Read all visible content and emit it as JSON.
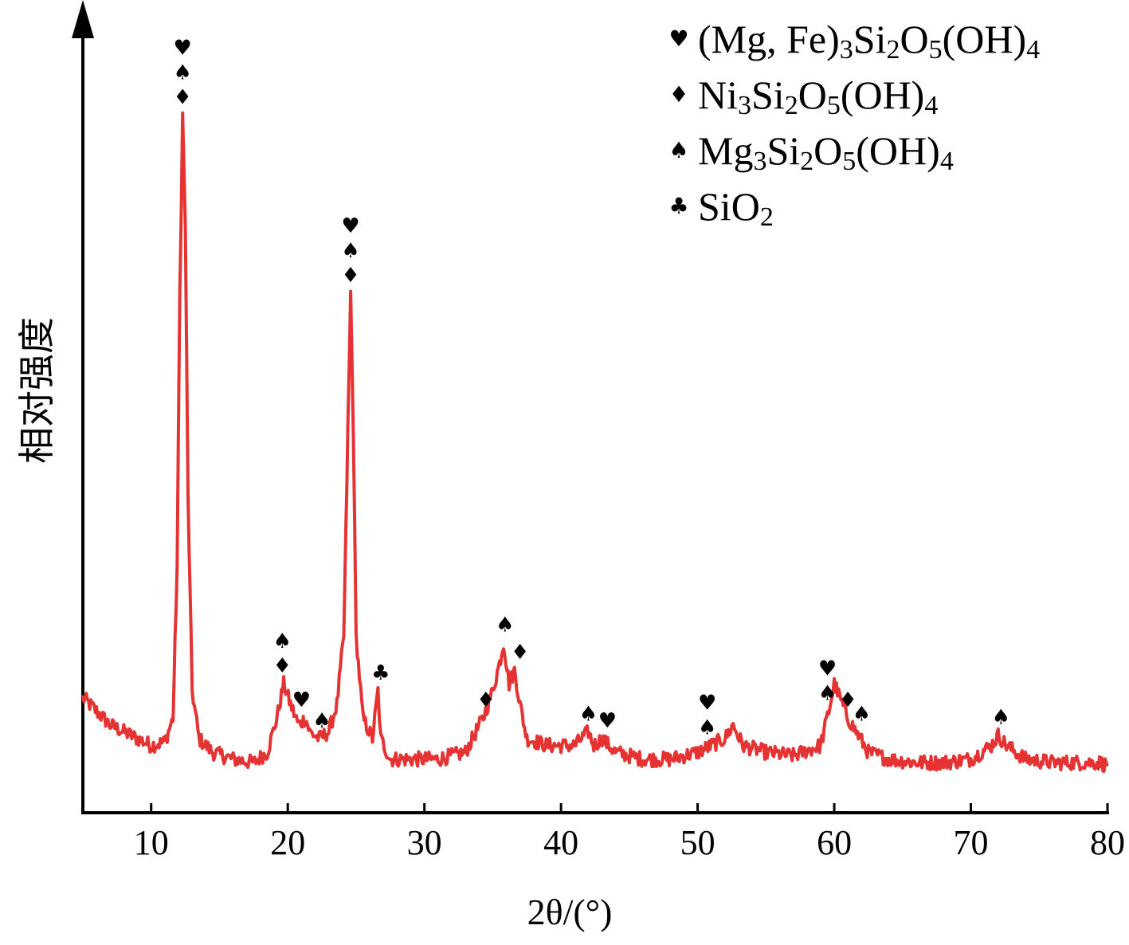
{
  "chart_data": {
    "type": "line",
    "xlabel": "2θ/(°)",
    "ylabel": "相对强度",
    "xlim": [
      5,
      80
    ],
    "ylim": [
      0,
      100
    ],
    "x_ticks": [
      10,
      20,
      30,
      40,
      50,
      60,
      70,
      80
    ],
    "x_tick_labels": [
      "10",
      "20",
      "30",
      "40",
      "50",
      "60",
      "70",
      "80"
    ],
    "y_ticks_shown": false,
    "grid": false,
    "legend_position": "top-right",
    "line_color": "#e53333",
    "legend": [
      {
        "symbol": "♥",
        "icon": "heart-icon",
        "label": "(Mg, Fe)3Si2O5(OH)4"
      },
      {
        "symbol": "♦",
        "icon": "diamond-icon",
        "label": "Ni3Si2O5(OH)4"
      },
      {
        "symbol": "♠",
        "icon": "spade-icon",
        "label": "Mg3Si2O5(OH)4"
      },
      {
        "symbol": "♣",
        "icon": "club-icon",
        "label": "SiO2"
      }
    ],
    "series": [
      {
        "color": "#e53333",
        "points": [
          [
            5.0,
            11
          ],
          [
            6.0,
            9
          ],
          [
            7.0,
            7
          ],
          [
            8.0,
            6
          ],
          [
            9.0,
            5
          ],
          [
            10.0,
            4
          ],
          [
            11.0,
            4.5
          ],
          [
            11.6,
            8
          ],
          [
            11.9,
            30
          ],
          [
            12.1,
            70
          ],
          [
            12.3,
            96
          ],
          [
            12.5,
            80
          ],
          [
            12.7,
            40
          ],
          [
            13.0,
            12
          ],
          [
            13.5,
            5
          ],
          [
            14.5,
            3
          ],
          [
            16.0,
            2
          ],
          [
            17.5,
            1.5
          ],
          [
            18.5,
            3
          ],
          [
            19.2,
            8
          ],
          [
            19.7,
            13
          ],
          [
            20.2,
            10
          ],
          [
            20.8,
            7
          ],
          [
            21.3,
            8
          ],
          [
            21.6,
            6
          ],
          [
            22.3,
            5
          ],
          [
            23.0,
            6
          ],
          [
            23.6,
            10
          ],
          [
            24.1,
            20
          ],
          [
            24.4,
            50
          ],
          [
            24.6,
            70
          ],
          [
            24.8,
            50
          ],
          [
            25.0,
            20
          ],
          [
            25.5,
            8
          ],
          [
            26.2,
            5
          ],
          [
            26.6,
            12
          ],
          [
            26.8,
            5
          ],
          [
            27.5,
            2
          ],
          [
            29.0,
            2
          ],
          [
            31.0,
            2
          ],
          [
            33.0,
            3
          ],
          [
            34.3,
            8
          ],
          [
            35.0,
            12
          ],
          [
            35.5,
            16
          ],
          [
            35.8,
            19
          ],
          [
            36.2,
            13
          ],
          [
            36.6,
            15
          ],
          [
            37.0,
            10
          ],
          [
            37.5,
            5
          ],
          [
            39.0,
            4
          ],
          [
            41.0,
            4
          ],
          [
            42.0,
            6
          ],
          [
            42.4,
            4
          ],
          [
            43.0,
            5
          ],
          [
            44.0,
            3
          ],
          [
            46.0,
            2
          ],
          [
            48.0,
            2
          ],
          [
            50.0,
            3
          ],
          [
            51.0,
            4
          ],
          [
            52.0,
            5
          ],
          [
            52.6,
            7
          ],
          [
            53.3,
            4
          ],
          [
            55.0,
            3
          ],
          [
            57.0,
            2.5
          ],
          [
            59.0,
            4
          ],
          [
            59.6,
            9
          ],
          [
            60.0,
            13
          ],
          [
            60.4,
            11
          ],
          [
            61.0,
            8
          ],
          [
            61.6,
            6
          ],
          [
            62.5,
            3
          ],
          [
            64.0,
            2
          ],
          [
            66.0,
            1.5
          ],
          [
            68.0,
            1.5
          ],
          [
            70.0,
            2
          ],
          [
            71.5,
            4
          ],
          [
            72.0,
            5.5
          ],
          [
            72.6,
            4
          ],
          [
            74.0,
            2
          ],
          [
            76.0,
            1.5
          ],
          [
            78.0,
            1.5
          ],
          [
            79.5,
            1.5
          ],
          [
            80.0,
            1
          ]
        ]
      }
    ],
    "annotations": [
      {
        "x": 12.3,
        "symbols": [
          "♥",
          "♠",
          "♦"
        ]
      },
      {
        "x": 19.6,
        "symbols": [
          "♠",
          "♦"
        ]
      },
      {
        "x": 21.0,
        "symbols": [
          "♥"
        ]
      },
      {
        "x": 22.5,
        "symbols": [
          "♠"
        ]
      },
      {
        "x": 24.6,
        "symbols": [
          "♥",
          "♠",
          "♦"
        ]
      },
      {
        "x": 26.8,
        "symbols": [
          "♣"
        ]
      },
      {
        "x": 34.5,
        "symbols": [
          "♦"
        ]
      },
      {
        "x": 35.9,
        "symbols": [
          "♠"
        ]
      },
      {
        "x": 37.0,
        "symbols": [
          "♦"
        ]
      },
      {
        "x": 42.0,
        "symbols": [
          "♠"
        ]
      },
      {
        "x": 43.4,
        "symbols": [
          "♥"
        ]
      },
      {
        "x": 50.7,
        "symbols": [
          "♥",
          "♠"
        ]
      },
      {
        "x": 59.5,
        "symbols": [
          "♥",
          "♠"
        ]
      },
      {
        "x": 61.0,
        "symbols": [
          "♦"
        ]
      },
      {
        "x": 62.0,
        "symbols": [
          "♠"
        ]
      },
      {
        "x": 72.2,
        "symbols": [
          "♠"
        ]
      }
    ]
  }
}
